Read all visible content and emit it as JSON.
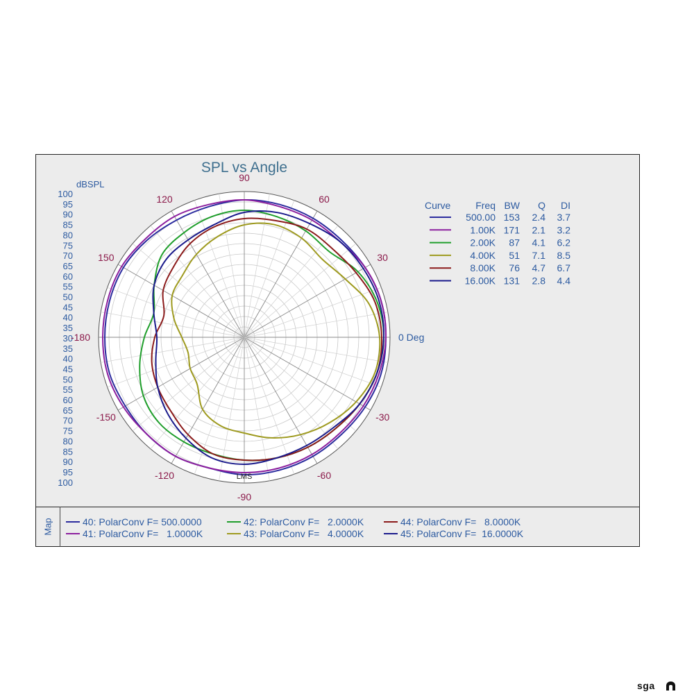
{
  "chart_data": {
    "type": "polar",
    "title": "SPL vs Angle",
    "ylabel": "dBSPL",
    "radial_ticks": [
      "100",
      "95",
      "90",
      "85",
      "80",
      "75",
      "70",
      "65",
      "60",
      "55",
      "50",
      "45",
      "40",
      "35",
      "30",
      "35",
      "40",
      "45",
      "50",
      "55",
      "60",
      "65",
      "70",
      "75",
      "80",
      "85",
      "90",
      "95",
      "100"
    ],
    "r_range": [
      30,
      100
    ],
    "angle_labels": [
      {
        "deg": 0,
        "text": "0 Deg"
      },
      {
        "deg": 30,
        "text": "30"
      },
      {
        "deg": 60,
        "text": "60"
      },
      {
        "deg": 90,
        "text": "90"
      },
      {
        "deg": 120,
        "text": "120"
      },
      {
        "deg": 150,
        "text": "150"
      },
      {
        "deg": 180,
        "text": "-180"
      },
      {
        "deg": -150,
        "text": "-150"
      },
      {
        "deg": -120,
        "text": "-120"
      },
      {
        "deg": -90,
        "text": "-90"
      },
      {
        "deg": -60,
        "text": "-60"
      },
      {
        "deg": -30,
        "text": "-30"
      }
    ],
    "table_headers": [
      "Curve",
      "Freq",
      "BW",
      "Q",
      "DI"
    ],
    "series": [
      {
        "name": "500.00",
        "color": "#2b2b9e",
        "freq": "500.00",
        "bw": "153",
        "q": "2.4",
        "di": "3.7",
        "points": [
          [
            0,
            98
          ],
          [
            15,
            98
          ],
          [
            30,
            97
          ],
          [
            45,
            96
          ],
          [
            60,
            96
          ],
          [
            75,
            96
          ],
          [
            90,
            96
          ],
          [
            105,
            95
          ],
          [
            120,
            95
          ],
          [
            135,
            96
          ],
          [
            150,
            97
          ],
          [
            165,
            97
          ],
          [
            180,
            97
          ],
          [
            -165,
            97
          ],
          [
            -150,
            96
          ],
          [
            -135,
            96
          ],
          [
            -120,
            96
          ],
          [
            -105,
            95
          ],
          [
            -90,
            96
          ],
          [
            -75,
            96
          ],
          [
            -60,
            96
          ],
          [
            -45,
            96
          ],
          [
            -30,
            97
          ],
          [
            -15,
            98
          ]
        ]
      },
      {
        "name": "1.00K",
        "color": "#8c1f9e",
        "freq": "1.00K",
        "bw": "171",
        "q": "2.1",
        "di": "3.2",
        "points": [
          [
            0,
            98
          ],
          [
            15,
            98
          ],
          [
            30,
            97
          ],
          [
            45,
            95
          ],
          [
            60,
            95
          ],
          [
            75,
            95
          ],
          [
            90,
            96
          ],
          [
            105,
            96
          ],
          [
            120,
            97
          ],
          [
            135,
            97
          ],
          [
            150,
            98
          ],
          [
            165,
            98
          ],
          [
            180,
            98
          ],
          [
            -165,
            98
          ],
          [
            -150,
            97
          ],
          [
            -135,
            96
          ],
          [
            -120,
            96
          ],
          [
            -105,
            95
          ],
          [
            -90,
            95
          ],
          [
            -75,
            95
          ],
          [
            -60,
            95
          ],
          [
            -45,
            95
          ],
          [
            -30,
            96
          ],
          [
            -15,
            97
          ]
        ]
      },
      {
        "name": "2.00K",
        "color": "#1f9e2b",
        "freq": "2.00K",
        "bw": "87",
        "q": "4.1",
        "di": "6.2",
        "points": [
          [
            0,
            97
          ],
          [
            15,
            96
          ],
          [
            30,
            93
          ],
          [
            45,
            88
          ],
          [
            60,
            89
          ],
          [
            75,
            90
          ],
          [
            90,
            91
          ],
          [
            105,
            90
          ],
          [
            120,
            88
          ],
          [
            135,
            86
          ],
          [
            150,
            80
          ],
          [
            165,
            75
          ],
          [
            180,
            78
          ],
          [
            -165,
            82
          ],
          [
            -150,
            86
          ],
          [
            -135,
            88
          ],
          [
            -120,
            88
          ],
          [
            -105,
            88
          ],
          [
            -90,
            89
          ],
          [
            -75,
            90
          ],
          [
            -60,
            91
          ],
          [
            -45,
            92
          ],
          [
            -30,
            94
          ],
          [
            -15,
            96
          ]
        ]
      },
      {
        "name": "4.00K",
        "color": "#9e9a1f",
        "freq": "4.00K",
        "bw": "51",
        "q": "7.1",
        "di": "8.5",
        "points": [
          [
            0,
            95
          ],
          [
            15,
            92
          ],
          [
            30,
            86
          ],
          [
            45,
            83
          ],
          [
            60,
            85
          ],
          [
            75,
            86
          ],
          [
            90,
            84
          ],
          [
            105,
            80
          ],
          [
            120,
            76
          ],
          [
            135,
            72
          ],
          [
            150,
            70
          ],
          [
            165,
            65
          ],
          [
            180,
            60
          ],
          [
            -165,
            58
          ],
          [
            -150,
            60
          ],
          [
            -135,
            62
          ],
          [
            -120,
            70
          ],
          [
            -105,
            74
          ],
          [
            -90,
            76
          ],
          [
            -75,
            80
          ],
          [
            -60,
            84
          ],
          [
            -45,
            88
          ],
          [
            -30,
            92
          ],
          [
            -15,
            95
          ]
        ]
      },
      {
        "name": "8.00K",
        "color": "#8b1a1a",
        "freq": "8.00K",
        "bw": "76",
        "q": "4.7",
        "di": "6.7",
        "points": [
          [
            0,
            96
          ],
          [
            15,
            95
          ],
          [
            30,
            92
          ],
          [
            45,
            90
          ],
          [
            60,
            90
          ],
          [
            75,
            88
          ],
          [
            90,
            87
          ],
          [
            105,
            85
          ],
          [
            120,
            82
          ],
          [
            135,
            78
          ],
          [
            150,
            75
          ],
          [
            165,
            70
          ],
          [
            180,
            73
          ],
          [
            -165,
            76
          ],
          [
            -150,
            78
          ],
          [
            -135,
            80
          ],
          [
            -120,
            84
          ],
          [
            -105,
            88
          ],
          [
            -90,
            89
          ],
          [
            -75,
            90
          ],
          [
            -60,
            91
          ],
          [
            -45,
            92
          ],
          [
            -30,
            94
          ],
          [
            -15,
            96
          ]
        ]
      },
      {
        "name": "16.00K",
        "color": "#1a1a8b",
        "freq": "16.00K",
        "bw": "131",
        "q": "2.8",
        "di": "4.4",
        "points": [
          [
            0,
            97
          ],
          [
            15,
            97
          ],
          [
            30,
            96
          ],
          [
            45,
            95
          ],
          [
            60,
            93
          ],
          [
            75,
            92
          ],
          [
            90,
            90
          ],
          [
            105,
            86
          ],
          [
            120,
            84
          ],
          [
            135,
            83
          ],
          [
            150,
            80
          ],
          [
            165,
            75
          ],
          [
            180,
            72
          ],
          [
            -165,
            74
          ],
          [
            -150,
            78
          ],
          [
            -135,
            82
          ],
          [
            -120,
            86
          ],
          [
            -105,
            90
          ],
          [
            -90,
            91
          ],
          [
            -75,
            90
          ],
          [
            -60,
            90
          ],
          [
            -45,
            91
          ],
          [
            -30,
            94
          ],
          [
            -15,
            96
          ]
        ]
      }
    ],
    "legend_entries": [
      {
        "text": "40: PolarConv F= 500.0000",
        "color": "#2b2b9e"
      },
      {
        "text": "41: PolarConv F=   1.0000K",
        "color": "#8c1f9e"
      },
      {
        "text": "42: PolarConv F=   2.0000K",
        "color": "#1f9e2b"
      },
      {
        "text": "43: PolarConv F=   4.0000K",
        "color": "#9e9a1f"
      },
      {
        "text": "44: PolarConv F=   8.0000K",
        "color": "#8b1a1a"
      },
      {
        "text": "45: PolarConv F=  16.0000K",
        "color": "#1a1a8b"
      }
    ],
    "stamp": "LMS"
  },
  "map_label": "Map",
  "brand_text": "sga"
}
